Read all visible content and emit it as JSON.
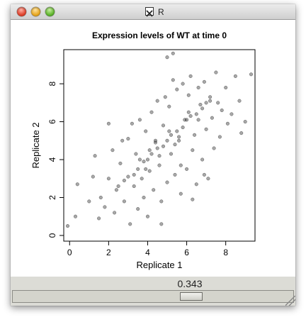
{
  "window": {
    "title": "R"
  },
  "plot": {
    "title": "Expression levels of WT at time 0"
  },
  "slider": {
    "value_label": "0.343",
    "value": 0.343
  },
  "chart_data": {
    "type": "scatter",
    "title": "Expression levels of WT at time 0",
    "xlabel": "Replicate 1",
    "ylabel": "Replicate 2",
    "xlim": [
      -0.3,
      9.5
    ],
    "ylim": [
      -0.3,
      9.8
    ],
    "xticks": [
      0,
      2,
      4,
      6,
      8
    ],
    "yticks": [
      0,
      2,
      4,
      6,
      8
    ],
    "point_color": "#000000",
    "point_alpha": 0.34,
    "points": [
      [
        -0.1,
        0.5
      ],
      [
        0.3,
        1.0
      ],
      [
        0.4,
        2.7
      ],
      [
        1.5,
        0.9
      ],
      [
        1.2,
        3.1
      ],
      [
        1.6,
        2.0
      ],
      [
        1.3,
        4.2
      ],
      [
        1.8,
        1.5
      ],
      [
        2.2,
        4.5
      ],
      [
        2.0,
        3.0
      ],
      [
        2.4,
        2.4
      ],
      [
        2.6,
        3.8
      ],
      [
        2.3,
        1.2
      ],
      [
        2.8,
        1.8
      ],
      [
        3.0,
        5.1
      ],
      [
        3.1,
        0.6
      ],
      [
        3.3,
        2.6
      ],
      [
        3.4,
        4.3
      ],
      [
        3.5,
        1.4
      ],
      [
        3.6,
        6.1
      ],
      [
        3.7,
        3.0
      ],
      [
        3.8,
        2.0
      ],
      [
        3.9,
        5.5
      ],
      [
        4.0,
        1.0
      ],
      [
        4.1,
        3.4
      ],
      [
        4.2,
        6.5
      ],
      [
        4.3,
        2.4
      ],
      [
        4.4,
        4.9
      ],
      [
        4.5,
        7.1
      ],
      [
        4.6,
        3.7
      ],
      [
        4.7,
        1.8
      ],
      [
        4.8,
        5.8
      ],
      [
        4.9,
        7.3
      ],
      [
        5.0,
        2.8
      ],
      [
        5.1,
        6.8
      ],
      [
        5.2,
        4.3
      ],
      [
        5.3,
        8.2
      ],
      [
        5.4,
        3.2
      ],
      [
        5.5,
        7.7
      ],
      [
        5.6,
        5.0
      ],
      [
        5.7,
        2.2
      ],
      [
        5.8,
        8.0
      ],
      [
        5.9,
        6.1
      ],
      [
        6.0,
        3.5
      ],
      [
        6.1,
        7.4
      ],
      [
        6.2,
        8.4
      ],
      [
        6.3,
        4.5
      ],
      [
        6.4,
        5.3
      ],
      [
        6.5,
        2.7
      ],
      [
        6.6,
        7.8
      ],
      [
        6.7,
        6.9
      ],
      [
        6.8,
        4.0
      ],
      [
        6.9,
        8.1
      ],
      [
        7.0,
        5.6
      ],
      [
        7.1,
        3.0
      ],
      [
        7.2,
        7.3
      ],
      [
        7.3,
        6.2
      ],
      [
        7.4,
        4.6
      ],
      [
        7.5,
        8.6
      ],
      [
        7.6,
        7.0
      ],
      [
        7.7,
        5.2
      ],
      [
        7.8,
        6.6
      ],
      [
        8.0,
        7.8
      ],
      [
        8.1,
        5.9
      ],
      [
        8.3,
        6.4
      ],
      [
        8.5,
        8.4
      ],
      [
        8.7,
        7.1
      ],
      [
        9.0,
        6.0
      ],
      [
        9.3,
        8.5
      ],
      [
        5.0,
        9.4
      ],
      [
        5.3,
        9.6
      ],
      [
        1.0,
        1.8
      ],
      [
        2.7,
        5.0
      ],
      [
        3.2,
        5.9
      ],
      [
        6.3,
        1.9
      ],
      [
        4.7,
        0.6
      ],
      [
        5.7,
        3.7
      ],
      [
        6.9,
        3.2
      ],
      [
        8.8,
        5.4
      ],
      [
        2.0,
        5.9
      ],
      [
        4.0,
        4.0
      ],
      [
        4.5,
        4.6
      ],
      [
        5.0,
        5.0
      ],
      [
        5.5,
        5.5
      ],
      [
        6.0,
        6.1
      ],
      [
        6.5,
        6.4
      ],
      [
        7.0,
        7.0
      ],
      [
        3.5,
        3.5
      ],
      [
        3.0,
        3.1
      ],
      [
        2.5,
        2.6
      ],
      [
        4.2,
        4.3
      ],
      [
        4.8,
        4.7
      ],
      [
        5.2,
        5.3
      ],
      [
        5.8,
        5.7
      ],
      [
        6.2,
        6.3
      ],
      [
        6.8,
        6.7
      ],
      [
        3.8,
        3.9
      ],
      [
        3.3,
        3.2
      ],
      [
        2.8,
        2.9
      ],
      [
        7.2,
        7.1
      ],
      [
        4.1,
        4.5
      ],
      [
        4.6,
        4.2
      ],
      [
        5.1,
        5.5
      ],
      [
        5.6,
        5.2
      ],
      [
        6.1,
        6.5
      ],
      [
        6.6,
        6.1
      ],
      [
        3.6,
        4.0
      ],
      [
        3.9,
        3.5
      ],
      [
        4.4,
        5.0
      ],
      [
        5.4,
        4.8
      ]
    ]
  }
}
